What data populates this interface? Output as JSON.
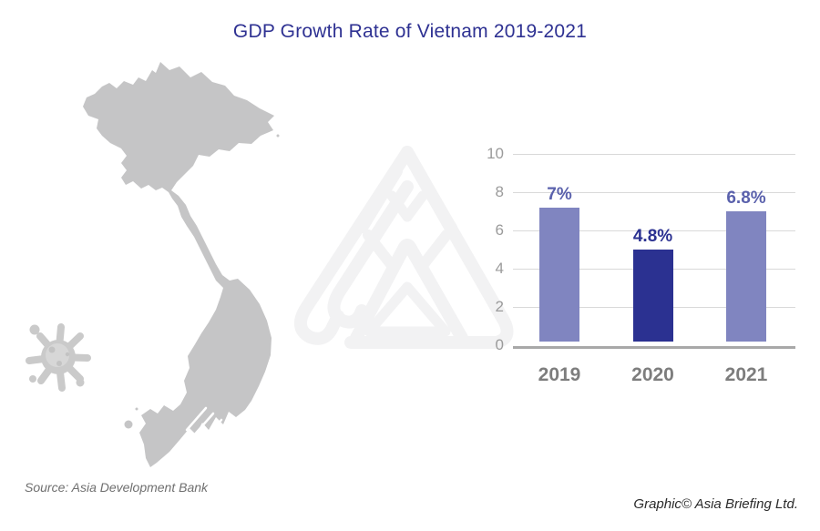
{
  "title": "GDP Growth Rate of Vietnam 2019-2021",
  "chart_data": {
    "type": "bar",
    "title": "GDP Growth Rate of Vietnam 2019-2021",
    "categories": [
      "2019",
      "2020",
      "2021"
    ],
    "values": [
      7,
      4.8,
      6.8
    ],
    "value_labels": [
      "7%",
      "4.8%",
      "6.8%"
    ],
    "bar_colors": [
      "#8085c0",
      "#2b3191",
      "#8085c0"
    ],
    "label_colors": [
      "#5a61ac",
      "#2b3191",
      "#5a61ac"
    ],
    "xlabel": "",
    "ylabel": "",
    "ylim": [
      0,
      10
    ],
    "yticks": [
      0,
      2,
      4,
      6,
      8,
      10
    ],
    "grid": true,
    "legend": "none"
  },
  "footer": {
    "source": "Source: Asia Development Bank",
    "credit": "Graphic© Asia Briefing Ltd."
  },
  "icons": {
    "map": "vietnam-map-silhouette",
    "virus": "coronavirus-icon",
    "watermark": "asia-briefing-logo-watermark"
  },
  "colors": {
    "title": "#2e3192",
    "map": "#c5c5c6",
    "virus_body": "#cacaca",
    "virus_inner": "#d7d7d7",
    "virus_dots": "#c3c3c3",
    "watermark": "#f2f2f3",
    "gridline": "#d9d9d9",
    "axis_line": "#a8a8a8",
    "tick_label": "#9b9b9b",
    "category_label": "#7d7d7d"
  }
}
